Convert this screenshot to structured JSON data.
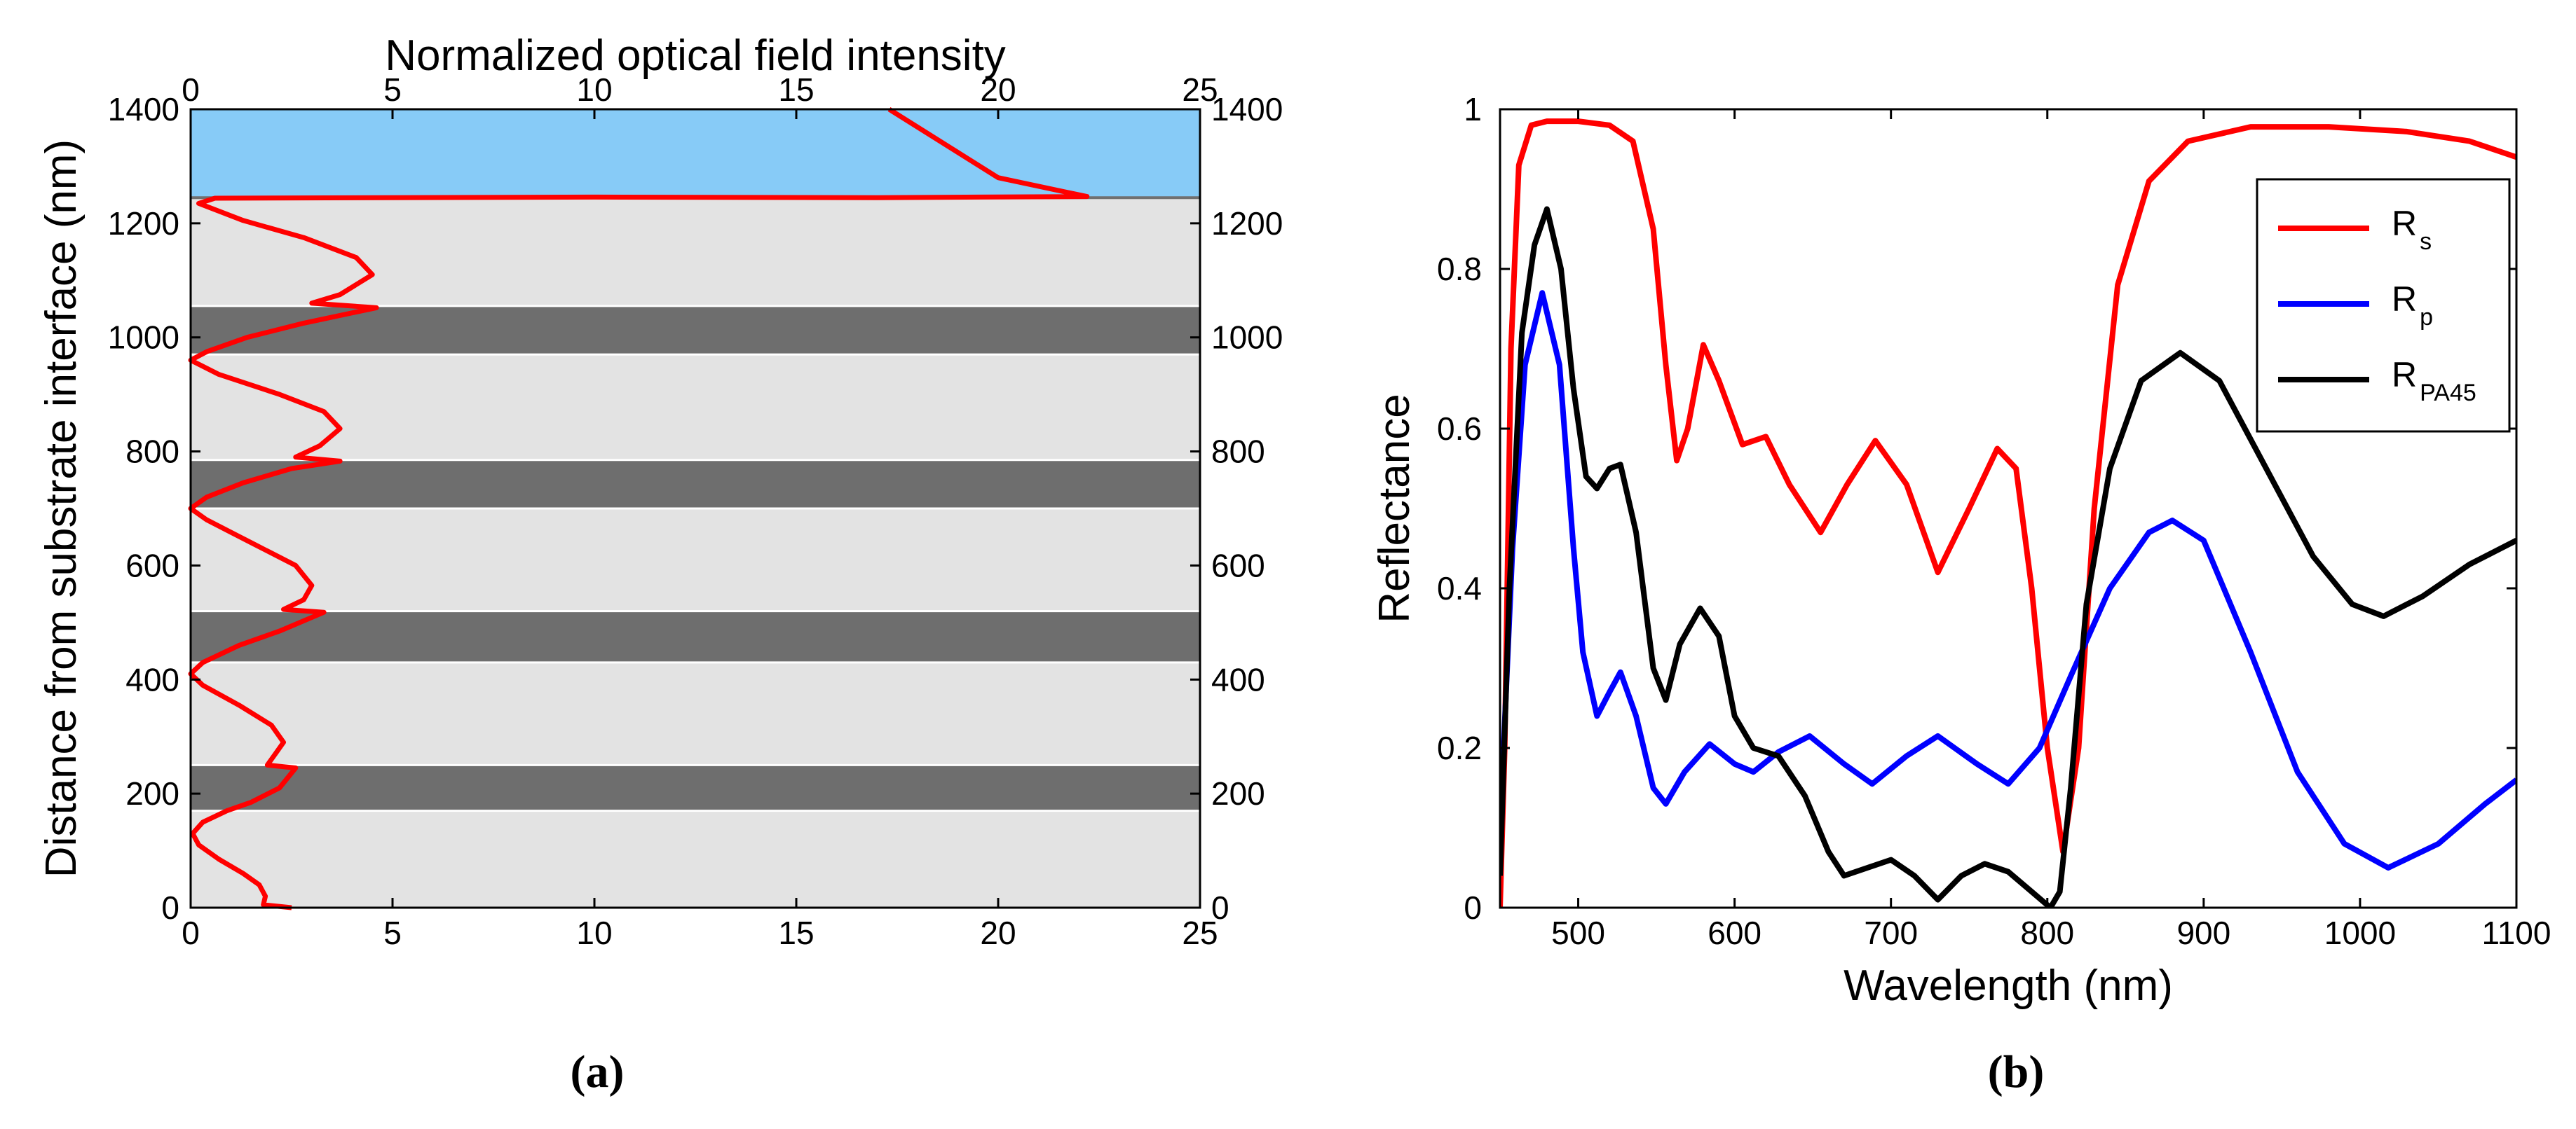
{
  "colors": {
    "cover_layer": "#87cbf7",
    "high_index_layer": "#6e6e6e",
    "low_index_layer": "#e3e3e3",
    "field_curve": "#ff0000",
    "rs_curve": "#ff0000",
    "rp_curve": "#0000ff",
    "rpa45_curve": "#000000"
  },
  "chart_data": [
    {
      "id": "a",
      "panel_label": "(a)",
      "type": "line",
      "title": "",
      "xlabel_top": "Normalized optical field intensity",
      "ylabel": "Distance from substrate interface (nm)",
      "xlim": [
        0,
        25
      ],
      "ylim": [
        0,
        1400
      ],
      "x_ticks": [
        "0",
        "5",
        "10",
        "15",
        "20",
        "25"
      ],
      "x_tick_values": [
        0,
        5,
        10,
        15,
        20,
        25
      ],
      "y_ticks": [
        "0",
        "200",
        "400",
        "600",
        "800",
        "1000",
        "1200",
        "1400"
      ],
      "y_tick_values": [
        0,
        200,
        400,
        600,
        800,
        1000,
        1200,
        1400
      ],
      "layers": [
        {
          "material": "low",
          "from": 0,
          "to": 170
        },
        {
          "material": "high",
          "from": 170,
          "to": 250
        },
        {
          "material": "low",
          "from": 250,
          "to": 430
        },
        {
          "material": "high",
          "from": 430,
          "to": 520
        },
        {
          "material": "low",
          "from": 520,
          "to": 700
        },
        {
          "material": "high",
          "from": 700,
          "to": 785
        },
        {
          "material": "low",
          "from": 785,
          "to": 970
        },
        {
          "material": "high",
          "from": 970,
          "to": 1055
        },
        {
          "material": "low",
          "from": 1055,
          "to": 1245
        },
        {
          "material": "cover",
          "from": 1245,
          "to": 1400
        }
      ],
      "series": [
        {
          "name": "Field intensity",
          "color": "#ff0000",
          "points": [
            [
              2.5,
              0
            ],
            [
              1.8,
              5
            ],
            [
              1.85,
              20
            ],
            [
              1.7,
              40
            ],
            [
              1.3,
              60
            ],
            [
              0.7,
              85
            ],
            [
              0.2,
              110
            ],
            [
              0.05,
              130
            ],
            [
              0.3,
              150
            ],
            [
              0.9,
              170
            ],
            [
              1.5,
              185
            ],
            [
              2.2,
              210
            ],
            [
              2.6,
              245
            ],
            [
              1.9,
              250
            ],
            [
              2.1,
              270
            ],
            [
              2.3,
              290
            ],
            [
              2.0,
              320
            ],
            [
              1.2,
              355
            ],
            [
              0.3,
              390
            ],
            [
              0.0,
              410
            ],
            [
              0.3,
              430
            ],
            [
              1.2,
              460
            ],
            [
              2.2,
              485
            ],
            [
              3.3,
              518
            ],
            [
              2.3,
              523
            ],
            [
              2.8,
              540
            ],
            [
              3.0,
              565
            ],
            [
              2.6,
              600
            ],
            [
              1.5,
              640
            ],
            [
              0.4,
              680
            ],
            [
              0.0,
              700
            ],
            [
              0.4,
              720
            ],
            [
              1.3,
              745
            ],
            [
              2.5,
              770
            ],
            [
              3.7,
              783
            ],
            [
              2.6,
              790
            ],
            [
              3.2,
              810
            ],
            [
              3.7,
              840
            ],
            [
              3.3,
              870
            ],
            [
              2.2,
              900
            ],
            [
              0.7,
              935
            ],
            [
              0.0,
              960
            ],
            [
              0.4,
              975
            ],
            [
              1.4,
              1000
            ],
            [
              2.8,
              1025
            ],
            [
              4.6,
              1052
            ],
            [
              3.0,
              1060
            ],
            [
              3.7,
              1075
            ],
            [
              4.5,
              1110
            ],
            [
              4.1,
              1140
            ],
            [
              2.8,
              1175
            ],
            [
              1.3,
              1205
            ],
            [
              0.2,
              1235
            ],
            [
              0.6,
              1244
            ],
            [
              10.0,
              1246
            ],
            [
              17.0,
              1245
            ],
            [
              22.2,
              1247
            ],
            [
              20.0,
              1280
            ],
            [
              17.3,
              1400
            ]
          ]
        }
      ]
    },
    {
      "id": "b",
      "panel_label": "(b)",
      "type": "line",
      "title": "",
      "xlabel": "Wavelength (nm)",
      "ylabel": "Reflectance",
      "xlim": [
        450,
        1100
      ],
      "ylim": [
        0,
        1
      ],
      "x_ticks": [
        "500",
        "600",
        "700",
        "800",
        "900",
        "1000",
        "1100"
      ],
      "x_tick_values": [
        500,
        600,
        700,
        800,
        900,
        1000,
        1100
      ],
      "y_ticks": [
        "0",
        "0.2",
        "0.4",
        "0.6",
        "0.8",
        "1"
      ],
      "y_tick_values": [
        0,
        0.2,
        0.4,
        0.6,
        0.8,
        1
      ],
      "legend": {
        "placement": "top-right",
        "entries": [
          {
            "base": "R",
            "sub": "s",
            "color": "#ff0000"
          },
          {
            "base": "R",
            "sub": "p",
            "color": "#0000ff"
          },
          {
            "base": "R",
            "sub": "PA45",
            "color": "#000000"
          }
        ]
      },
      "series": [
        {
          "name": "Rs",
          "color": "#ff0000",
          "points": [
            [
              450,
              0.0
            ],
            [
              453,
              0.2
            ],
            [
              457,
              0.7
            ],
            [
              462,
              0.93
            ],
            [
              470,
              0.98
            ],
            [
              480,
              0.985
            ],
            [
              500,
              0.985
            ],
            [
              520,
              0.98
            ],
            [
              535,
              0.96
            ],
            [
              548,
              0.85
            ],
            [
              556,
              0.68
            ],
            [
              563,
              0.56
            ],
            [
              570,
              0.6
            ],
            [
              580,
              0.705
            ],
            [
              590,
              0.66
            ],
            [
              605,
              0.58
            ],
            [
              620,
              0.59
            ],
            [
              635,
              0.53
            ],
            [
              655,
              0.47
            ],
            [
              672,
              0.53
            ],
            [
              690,
              0.585
            ],
            [
              710,
              0.53
            ],
            [
              730,
              0.42
            ],
            [
              750,
              0.5
            ],
            [
              768,
              0.575
            ],
            [
              780,
              0.55
            ],
            [
              790,
              0.4
            ],
            [
              800,
              0.2
            ],
            [
              810,
              0.07
            ],
            [
              820,
              0.2
            ],
            [
              830,
              0.5
            ],
            [
              845,
              0.78
            ],
            [
              865,
              0.91
            ],
            [
              890,
              0.96
            ],
            [
              930,
              0.978
            ],
            [
              980,
              0.978
            ],
            [
              1030,
              0.972
            ],
            [
              1070,
              0.96
            ],
            [
              1100,
              0.94
            ]
          ]
        },
        {
          "name": "Rp",
          "color": "#0000ff",
          "points": [
            [
              450,
              0.1
            ],
            [
              458,
              0.45
            ],
            [
              466,
              0.68
            ],
            [
              477,
              0.77
            ],
            [
              488,
              0.68
            ],
            [
              497,
              0.45
            ],
            [
              503,
              0.32
            ],
            [
              512,
              0.24
            ],
            [
              520,
              0.27
            ],
            [
              527,
              0.295
            ],
            [
              537,
              0.24
            ],
            [
              548,
              0.15
            ],
            [
              556,
              0.13
            ],
            [
              568,
              0.17
            ],
            [
              584,
              0.205
            ],
            [
              600,
              0.18
            ],
            [
              612,
              0.17
            ],
            [
              628,
              0.195
            ],
            [
              648,
              0.215
            ],
            [
              670,
              0.18
            ],
            [
              688,
              0.155
            ],
            [
              710,
              0.19
            ],
            [
              730,
              0.215
            ],
            [
              755,
              0.18
            ],
            [
              775,
              0.155
            ],
            [
              795,
              0.2
            ],
            [
              815,
              0.29
            ],
            [
              840,
              0.4
            ],
            [
              865,
              0.47
            ],
            [
              880,
              0.485
            ],
            [
              900,
              0.46
            ],
            [
              930,
              0.32
            ],
            [
              960,
              0.17
            ],
            [
              990,
              0.08
            ],
            [
              1018,
              0.05
            ],
            [
              1050,
              0.08
            ],
            [
              1080,
              0.13
            ],
            [
              1100,
              0.16
            ]
          ]
        },
        {
          "name": "RPA45",
          "color": "#000000",
          "points": [
            [
              450,
              0.04
            ],
            [
              456,
              0.4
            ],
            [
              464,
              0.72
            ],
            [
              472,
              0.83
            ],
            [
              480,
              0.875
            ],
            [
              489,
              0.8
            ],
            [
              497,
              0.65
            ],
            [
              505,
              0.54
            ],
            [
              512,
              0.525
            ],
            [
              520,
              0.55
            ],
            [
              527,
              0.555
            ],
            [
              537,
              0.47
            ],
            [
              548,
              0.3
            ],
            [
              556,
              0.26
            ],
            [
              565,
              0.33
            ],
            [
              578,
              0.375
            ],
            [
              590,
              0.34
            ],
            [
              600,
              0.24
            ],
            [
              612,
              0.2
            ],
            [
              628,
              0.19
            ],
            [
              645,
              0.14
            ],
            [
              660,
              0.07
            ],
            [
              670,
              0.04
            ],
            [
              685,
              0.05
            ],
            [
              700,
              0.06
            ],
            [
              715,
              0.04
            ],
            [
              730,
              0.01
            ],
            [
              745,
              0.04
            ],
            [
              760,
              0.055
            ],
            [
              775,
              0.045
            ],
            [
              790,
              0.02
            ],
            [
              802,
              0.0
            ],
            [
              808,
              0.02
            ],
            [
              815,
              0.15
            ],
            [
              825,
              0.38
            ],
            [
              840,
              0.55
            ],
            [
              860,
              0.66
            ],
            [
              885,
              0.695
            ],
            [
              910,
              0.66
            ],
            [
              940,
              0.55
            ],
            [
              970,
              0.44
            ],
            [
              995,
              0.38
            ],
            [
              1015,
              0.365
            ],
            [
              1040,
              0.39
            ],
            [
              1070,
              0.43
            ],
            [
              1100,
              0.46
            ]
          ]
        }
      ]
    }
  ]
}
